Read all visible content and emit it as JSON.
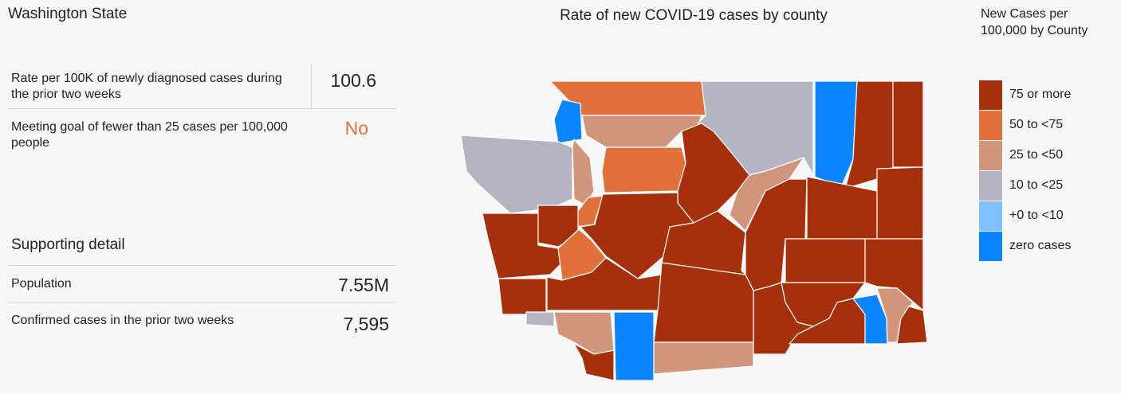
{
  "header": {
    "title": "Washington State"
  },
  "summary": {
    "rows": [
      {
        "label": "Rate per 100K of newly diagnosed cases during the prior two weeks",
        "value": "100.6"
      },
      {
        "label": "Meeting goal of fewer than 25 cases per 100,000 people",
        "value": "No"
      }
    ]
  },
  "detail": {
    "title": "Supporting detail",
    "rows": [
      {
        "label": "Population",
        "value": "7.55M"
      },
      {
        "label": "Confirmed cases in the prior two weeks",
        "value": "7,595"
      }
    ]
  },
  "map": {
    "title": "Rate of new COVID-19 cases by county"
  },
  "legend": {
    "title": "New Cases per 100,000 by County",
    "items": [
      {
        "label": "75 or more",
        "color": "#a5300b"
      },
      {
        "label": "50 to <75",
        "color": "#e2703a"
      },
      {
        "label": "25 to <50",
        "color": "#d0957b"
      },
      {
        "label": "10 to <25",
        "color": "#b5b4c2"
      },
      {
        "label": "+0 to <10",
        "color": "#80c0ff"
      },
      {
        "label": "zero cases",
        "color": "#0a84ff"
      }
    ]
  }
}
